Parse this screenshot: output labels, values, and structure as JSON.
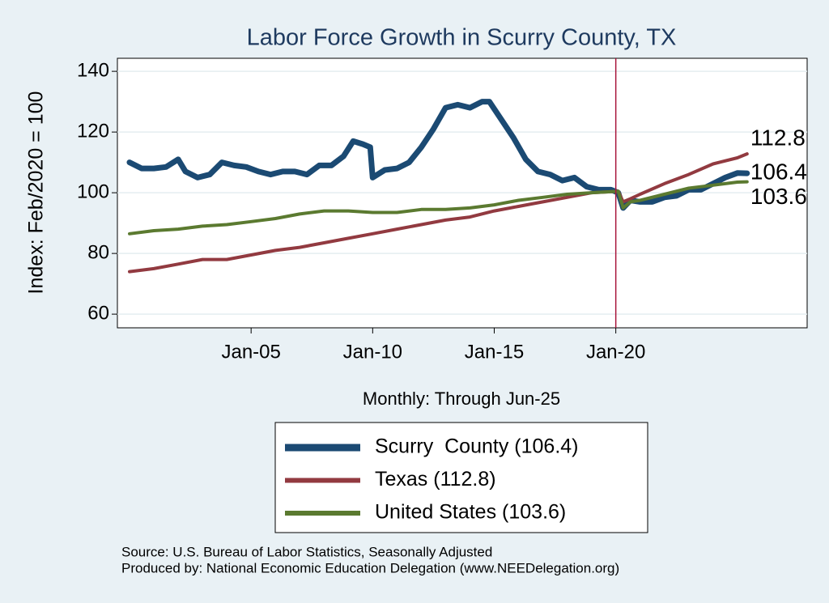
{
  "chart_data": {
    "type": "line",
    "title": "Labor Force Growth in Scurry  County, TX",
    "x_label": "Monthly: Through Jun-25",
    "y_label": "Index: Feb/2020 = 100",
    "source": "Source: U.S. Bureau of Labor Statistics, Seasonally Adjusted",
    "producer": "Produced by: National Economic Education Delegation (www.NEEDelegation.org)",
    "xlim": [
      1999.5,
      2027.87
    ],
    "ylim": [
      55.5,
      144.3
    ],
    "xticks": [
      {
        "value": 2005,
        "label": "Jan-05"
      },
      {
        "value": 2010,
        "label": "Jan-10"
      },
      {
        "value": 2015,
        "label": "Jan-15"
      },
      {
        "value": 2020,
        "label": "Jan-20"
      }
    ],
    "yticks": [
      60,
      80,
      100,
      120,
      140
    ],
    "grid": true,
    "vline": 2020,
    "vline_color": "#a8163c",
    "series": [
      {
        "name": "Scurry  County (106.4)",
        "color": "#1b4a73",
        "width": 7,
        "x": [
          2000.0,
          2000.5,
          2001.0,
          2001.5,
          2002.0,
          2002.3,
          2002.8,
          2003.3,
          2003.8,
          2004.3,
          2004.8,
          2005.3,
          2005.8,
          2006.3,
          2006.8,
          2007.3,
          2007.8,
          2008.3,
          2008.8,
          2009.2,
          2009.6,
          2009.9,
          2010.0,
          2010.5,
          2011.0,
          2011.5,
          2012.0,
          2012.5,
          2013.0,
          2013.5,
          2014.0,
          2014.5,
          2014.8,
          2015.3,
          2015.8,
          2016.3,
          2016.8,
          2017.3,
          2017.8,
          2018.3,
          2018.8,
          2019.3,
          2019.8,
          2020.1,
          2020.3,
          2020.6,
          2021.0,
          2021.5,
          2022.0,
          2022.5,
          2023.0,
          2023.5,
          2024.0,
          2024.5,
          2025.0,
          2025.4
        ],
        "values": [
          110,
          108,
          108,
          108.5,
          111,
          107,
          105,
          106,
          110,
          109,
          108.5,
          107,
          106,
          107,
          107,
          106,
          109,
          109,
          112,
          117,
          116,
          115,
          105,
          107.5,
          108,
          110,
          115,
          121,
          128,
          129,
          128,
          130,
          130,
          124,
          118,
          111,
          107,
          106,
          104,
          105,
          102,
          101,
          101,
          100,
          95,
          97.5,
          97,
          97,
          98.5,
          99,
          101,
          101,
          103,
          105,
          106.5,
          106.4
        ]
      },
      {
        "name": "Texas (112.8)",
        "color": "#923a40",
        "width": 4,
        "x": [
          2000,
          2001,
          2002,
          2003,
          2004,
          2005,
          2006,
          2007,
          2008,
          2009,
          2010,
          2011,
          2012,
          2013,
          2014,
          2015,
          2016,
          2017,
          2018,
          2019,
          2020.1,
          2020.3,
          2020.6,
          2021,
          2022,
          2023,
          2024,
          2025,
          2025.4
        ],
        "values": [
          74,
          75,
          76.5,
          78,
          78,
          79.5,
          81,
          82,
          83.5,
          85,
          86.5,
          88,
          89.5,
          91,
          92,
          94,
          95.5,
          97,
          98.5,
          100,
          100.5,
          97,
          98,
          99.5,
          103,
          106,
          109.5,
          111.5,
          112.8
        ]
      },
      {
        "name": "United States (103.6)",
        "color": "#5b7a30",
        "width": 4,
        "x": [
          2000,
          2001,
          2002,
          2003,
          2004,
          2005,
          2006,
          2007,
          2008,
          2009,
          2010,
          2011,
          2012,
          2013,
          2014,
          2015,
          2016,
          2017,
          2018,
          2019,
          2020.1,
          2020.3,
          2020.6,
          2021,
          2022,
          2023,
          2024,
          2025,
          2025.4
        ],
        "values": [
          86.5,
          87.5,
          88,
          89,
          89.5,
          90.5,
          91.5,
          93,
          94,
          94,
          93.5,
          93.5,
          94.5,
          94.5,
          95,
          96,
          97.5,
          98.5,
          99.5,
          100,
          100.5,
          95,
          97,
          97.5,
          99.5,
          101.5,
          102.5,
          103.5,
          103.6
        ]
      }
    ]
  }
}
